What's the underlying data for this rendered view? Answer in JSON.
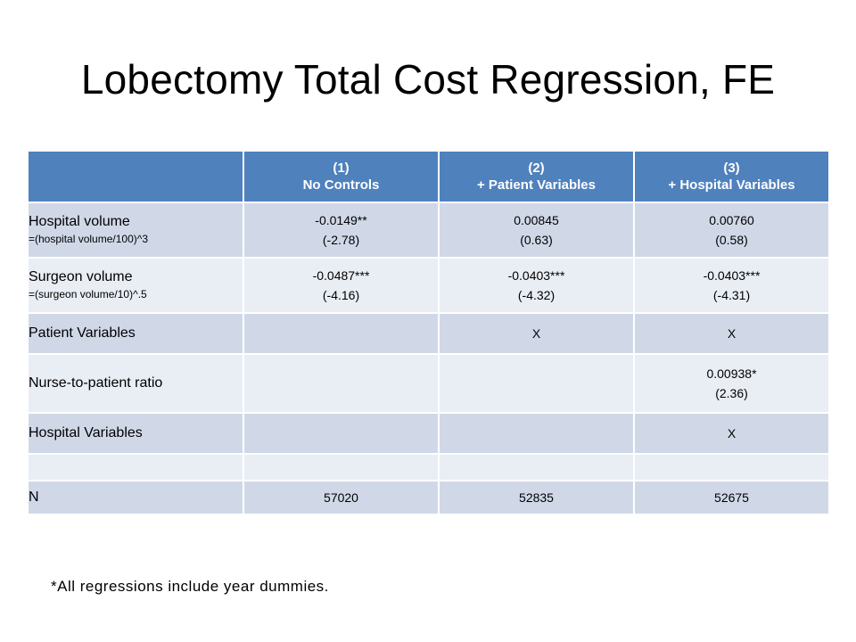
{
  "title": "Lobectomy Total Cost Regression, FE",
  "columns": [
    {
      "num": "(1)",
      "label": "No Controls"
    },
    {
      "num": "(2)",
      "label": "+ Patient Variables"
    },
    {
      "num": "(3)",
      "label": "+ Hospital Variables"
    }
  ],
  "rows": [
    {
      "label": "Hospital volume",
      "sub": "=(hospital volume/100)^3",
      "cells": [
        {
          "coef": "-0.0149**",
          "t": "(-2.78)"
        },
        {
          "coef": "0.00845",
          "t": "(0.63)"
        },
        {
          "coef": "0.00760",
          "t": "(0.58)"
        }
      ]
    },
    {
      "label": "Surgeon volume",
      "sub": "=(surgeon volume/10)^.5",
      "cells": [
        {
          "coef": "-0.0487***",
          "t": "(-4.16)"
        },
        {
          "coef": "-0.0403***",
          "t": "(-4.32)"
        },
        {
          "coef": "-0.0403***",
          "t": "(-4.31)"
        }
      ]
    },
    {
      "label": "Patient Variables",
      "cells": [
        {
          "coef": ""
        },
        {
          "coef": "X"
        },
        {
          "coef": "X"
        }
      ]
    },
    {
      "label": "Nurse-to-patient ratio",
      "cells": [
        {
          "coef": ""
        },
        {
          "coef": ""
        },
        {
          "coef": "0.00938*",
          "t": "(2.36)"
        }
      ]
    },
    {
      "label": "Hospital Variables",
      "cells": [
        {
          "coef": ""
        },
        {
          "coef": ""
        },
        {
          "coef": "X"
        }
      ]
    },
    {
      "label": "",
      "cells": [
        {
          "coef": ""
        },
        {
          "coef": ""
        },
        {
          "coef": ""
        }
      ]
    },
    {
      "label": "N",
      "cells": [
        {
          "coef": "57020"
        },
        {
          "coef": "52835"
        },
        {
          "coef": "52675"
        }
      ]
    }
  ],
  "footnote": "*All regressions include year dummies.",
  "colors": {
    "header_bg": "#4f81bd",
    "row_dark": "#d0d8e8",
    "row_light": "#e9edf4"
  }
}
